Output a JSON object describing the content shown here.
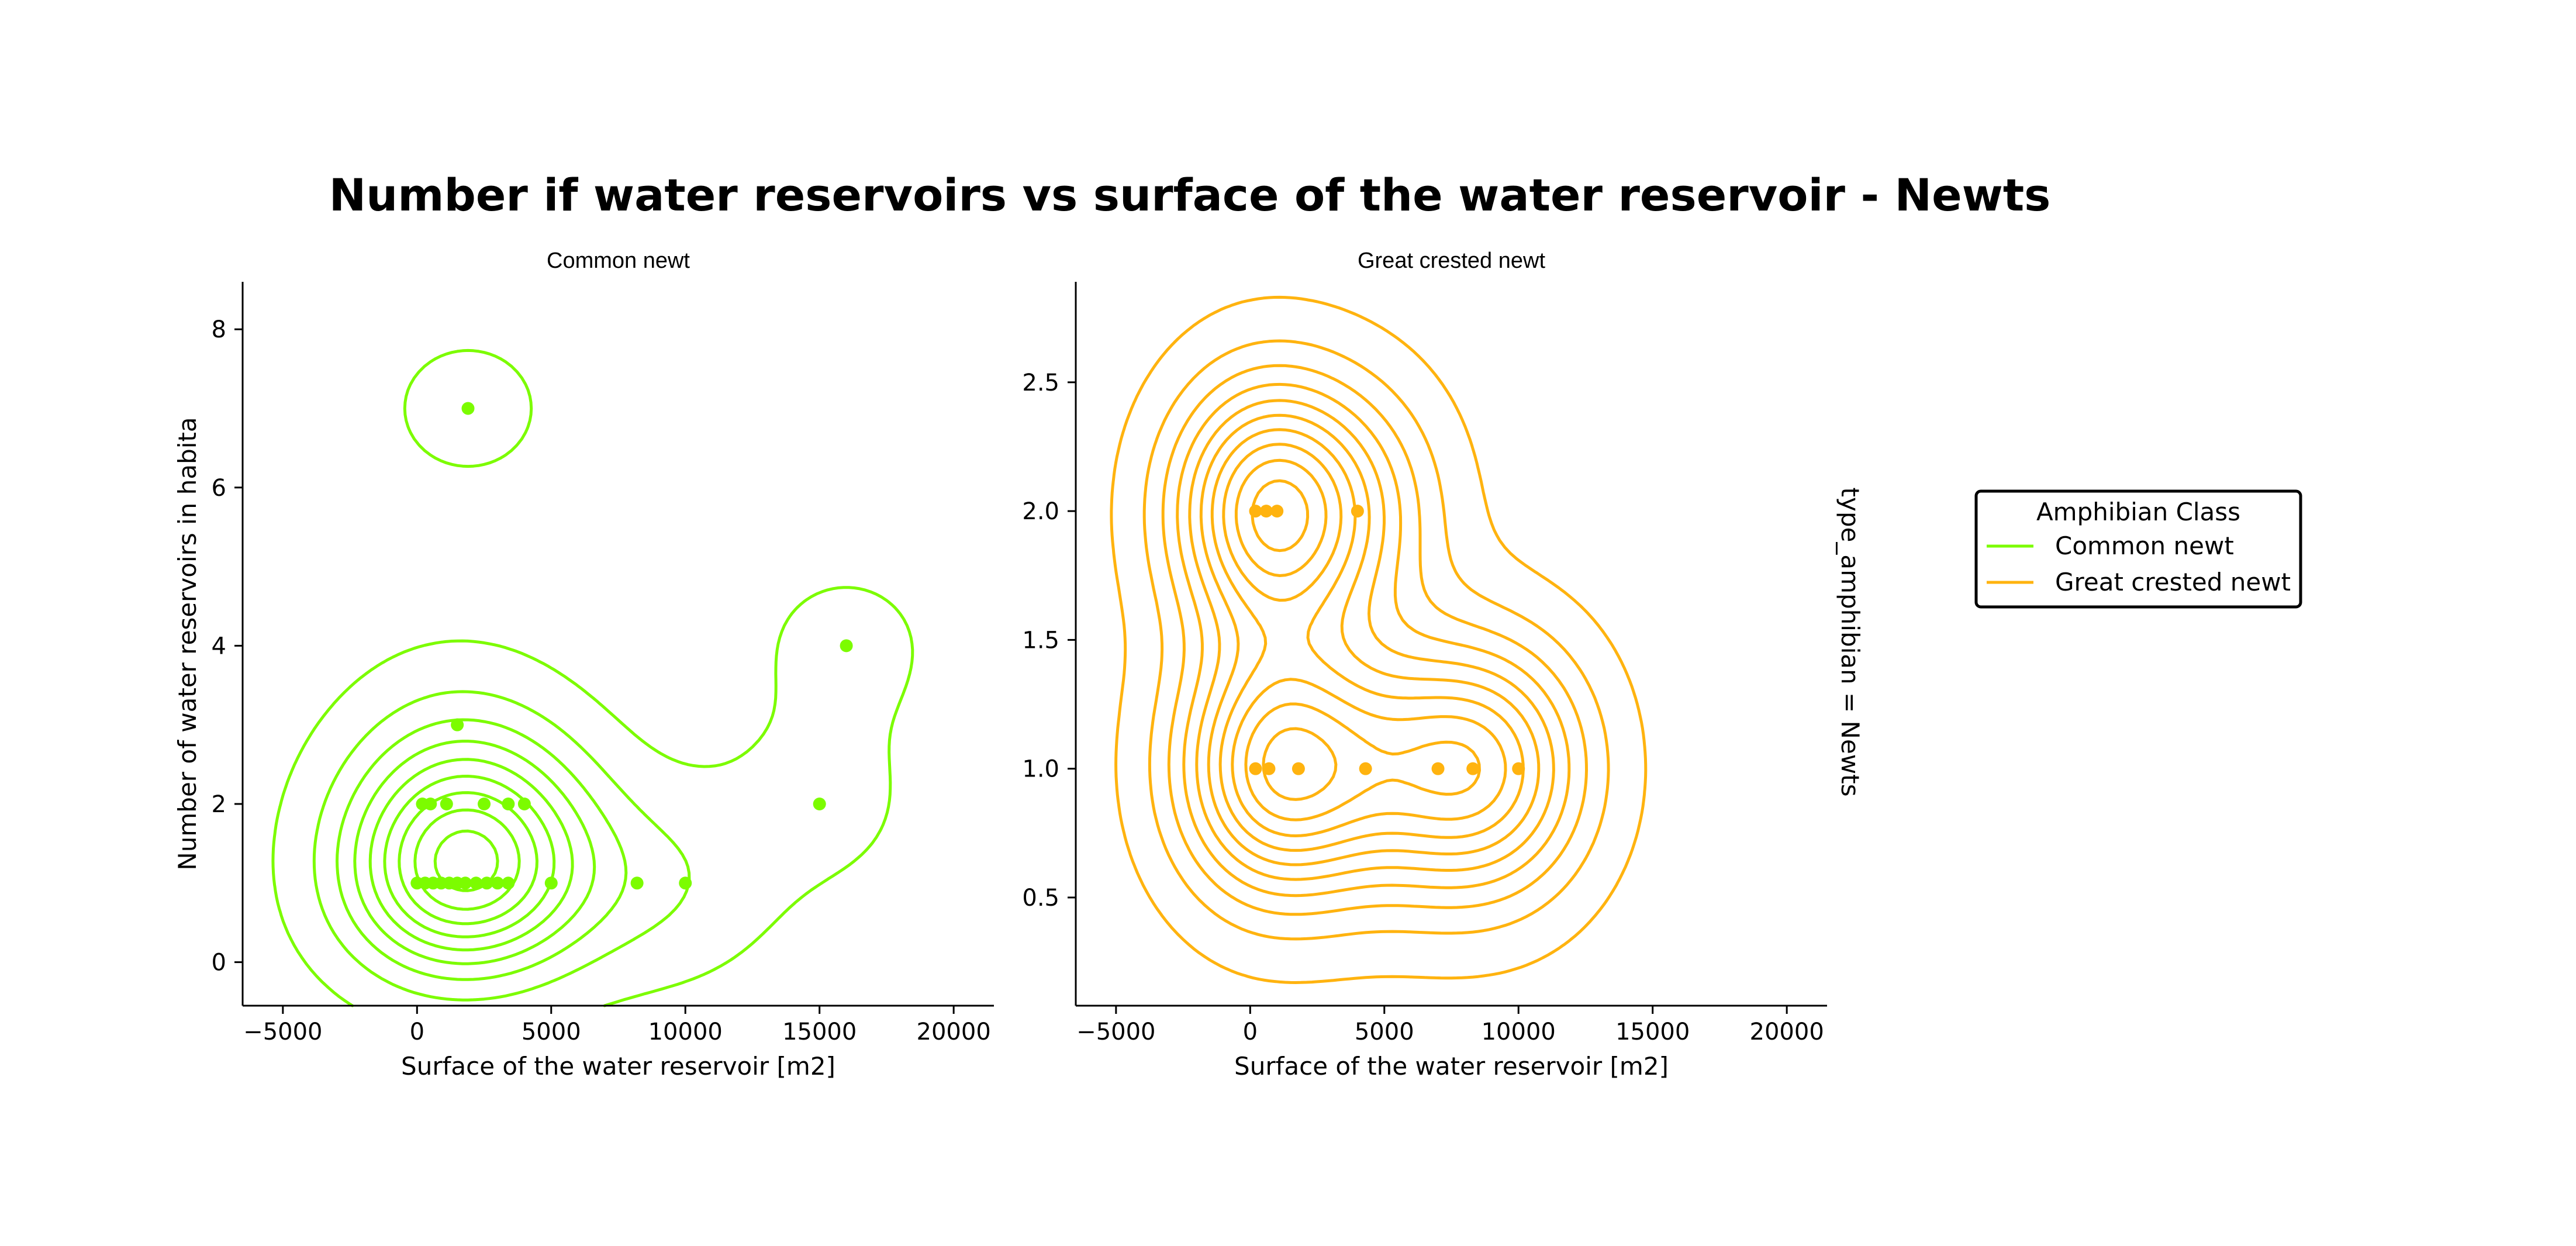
{
  "title": "Number if water reservoirs vs surface of the water reservoir - Newts",
  "facet_label": "type_amphibian = Newts",
  "legend": {
    "title": "Amphibian Class",
    "items": [
      {
        "label": "Common newt",
        "color": "#7cfc00"
      },
      {
        "label": "Great crested newt",
        "color": "#ffb30f"
      }
    ]
  },
  "chart_data": [
    {
      "type": "scatter",
      "subtitle": "Common newt",
      "color": "#7cfc00",
      "xlabel": "Surface of the water reservoir [m2]",
      "ylabel": "Number of water reservoirs in habita",
      "xlim": [
        -6500,
        21500
      ],
      "ylim": [
        -0.55,
        8.6
      ],
      "xticks": [
        -5000,
        0,
        5000,
        10000,
        15000,
        20000
      ],
      "yticks": [
        0,
        2,
        4,
        6,
        8
      ],
      "points": [
        [
          1900,
          7
        ],
        [
          16000,
          4
        ],
        [
          1500,
          3
        ],
        [
          200,
          2
        ],
        [
          500,
          2
        ],
        [
          1100,
          2
        ],
        [
          2500,
          2
        ],
        [
          3400,
          2
        ],
        [
          4000,
          2
        ],
        [
          15000,
          2
        ],
        [
          0,
          1
        ],
        [
          300,
          1
        ],
        [
          600,
          1
        ],
        [
          900,
          1
        ],
        [
          1200,
          1
        ],
        [
          1500,
          1
        ],
        [
          1800,
          1
        ],
        [
          2200,
          1
        ],
        [
          2600,
          1
        ],
        [
          3000,
          1
        ],
        [
          3400,
          1
        ],
        [
          5000,
          1
        ],
        [
          8200,
          1
        ],
        [
          10000,
          1
        ]
      ],
      "kde_contours": 9
    },
    {
      "type": "scatter",
      "subtitle": "Great crested newt",
      "color": "#ffb30f",
      "xlabel": "Surface of the water reservoir [m2]",
      "ylabel": "",
      "xlim": [
        -6500,
        21500
      ],
      "ylim": [
        0.08,
        2.89
      ],
      "xticks": [
        -5000,
        0,
        5000,
        10000,
        15000,
        20000
      ],
      "yticks": [
        0.5,
        1.0,
        1.5,
        2.0,
        2.5
      ],
      "points": [
        [
          200,
          2
        ],
        [
          600,
          2
        ],
        [
          1000,
          2
        ],
        [
          4000,
          2
        ],
        [
          200,
          1
        ],
        [
          700,
          1
        ],
        [
          1800,
          1
        ],
        [
          4300,
          1
        ],
        [
          7000,
          1
        ],
        [
          8300,
          1
        ],
        [
          10000,
          1
        ]
      ],
      "kde_contours": 10
    }
  ]
}
